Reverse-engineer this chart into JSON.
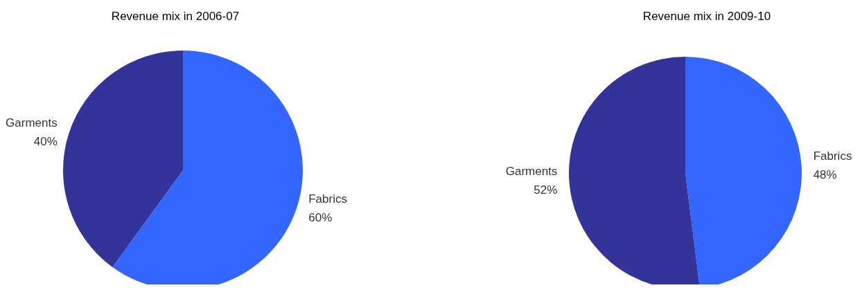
{
  "chart_data": [
    {
      "type": "pie",
      "title": "Revenue mix in 2006-07",
      "categories": [
        "Fabrics",
        "Garments"
      ],
      "values": [
        60,
        40
      ],
      "value_labels": [
        "60%",
        "40%"
      ],
      "colors": [
        "#3366ff",
        "#333399"
      ]
    },
    {
      "type": "pie",
      "title": "Revenue mix in 2009-10",
      "categories": [
        "Fabrics",
        "Garments"
      ],
      "values": [
        48,
        52
      ],
      "value_labels": [
        "48%",
        "52%"
      ],
      "colors": [
        "#3366ff",
        "#333399"
      ]
    }
  ]
}
